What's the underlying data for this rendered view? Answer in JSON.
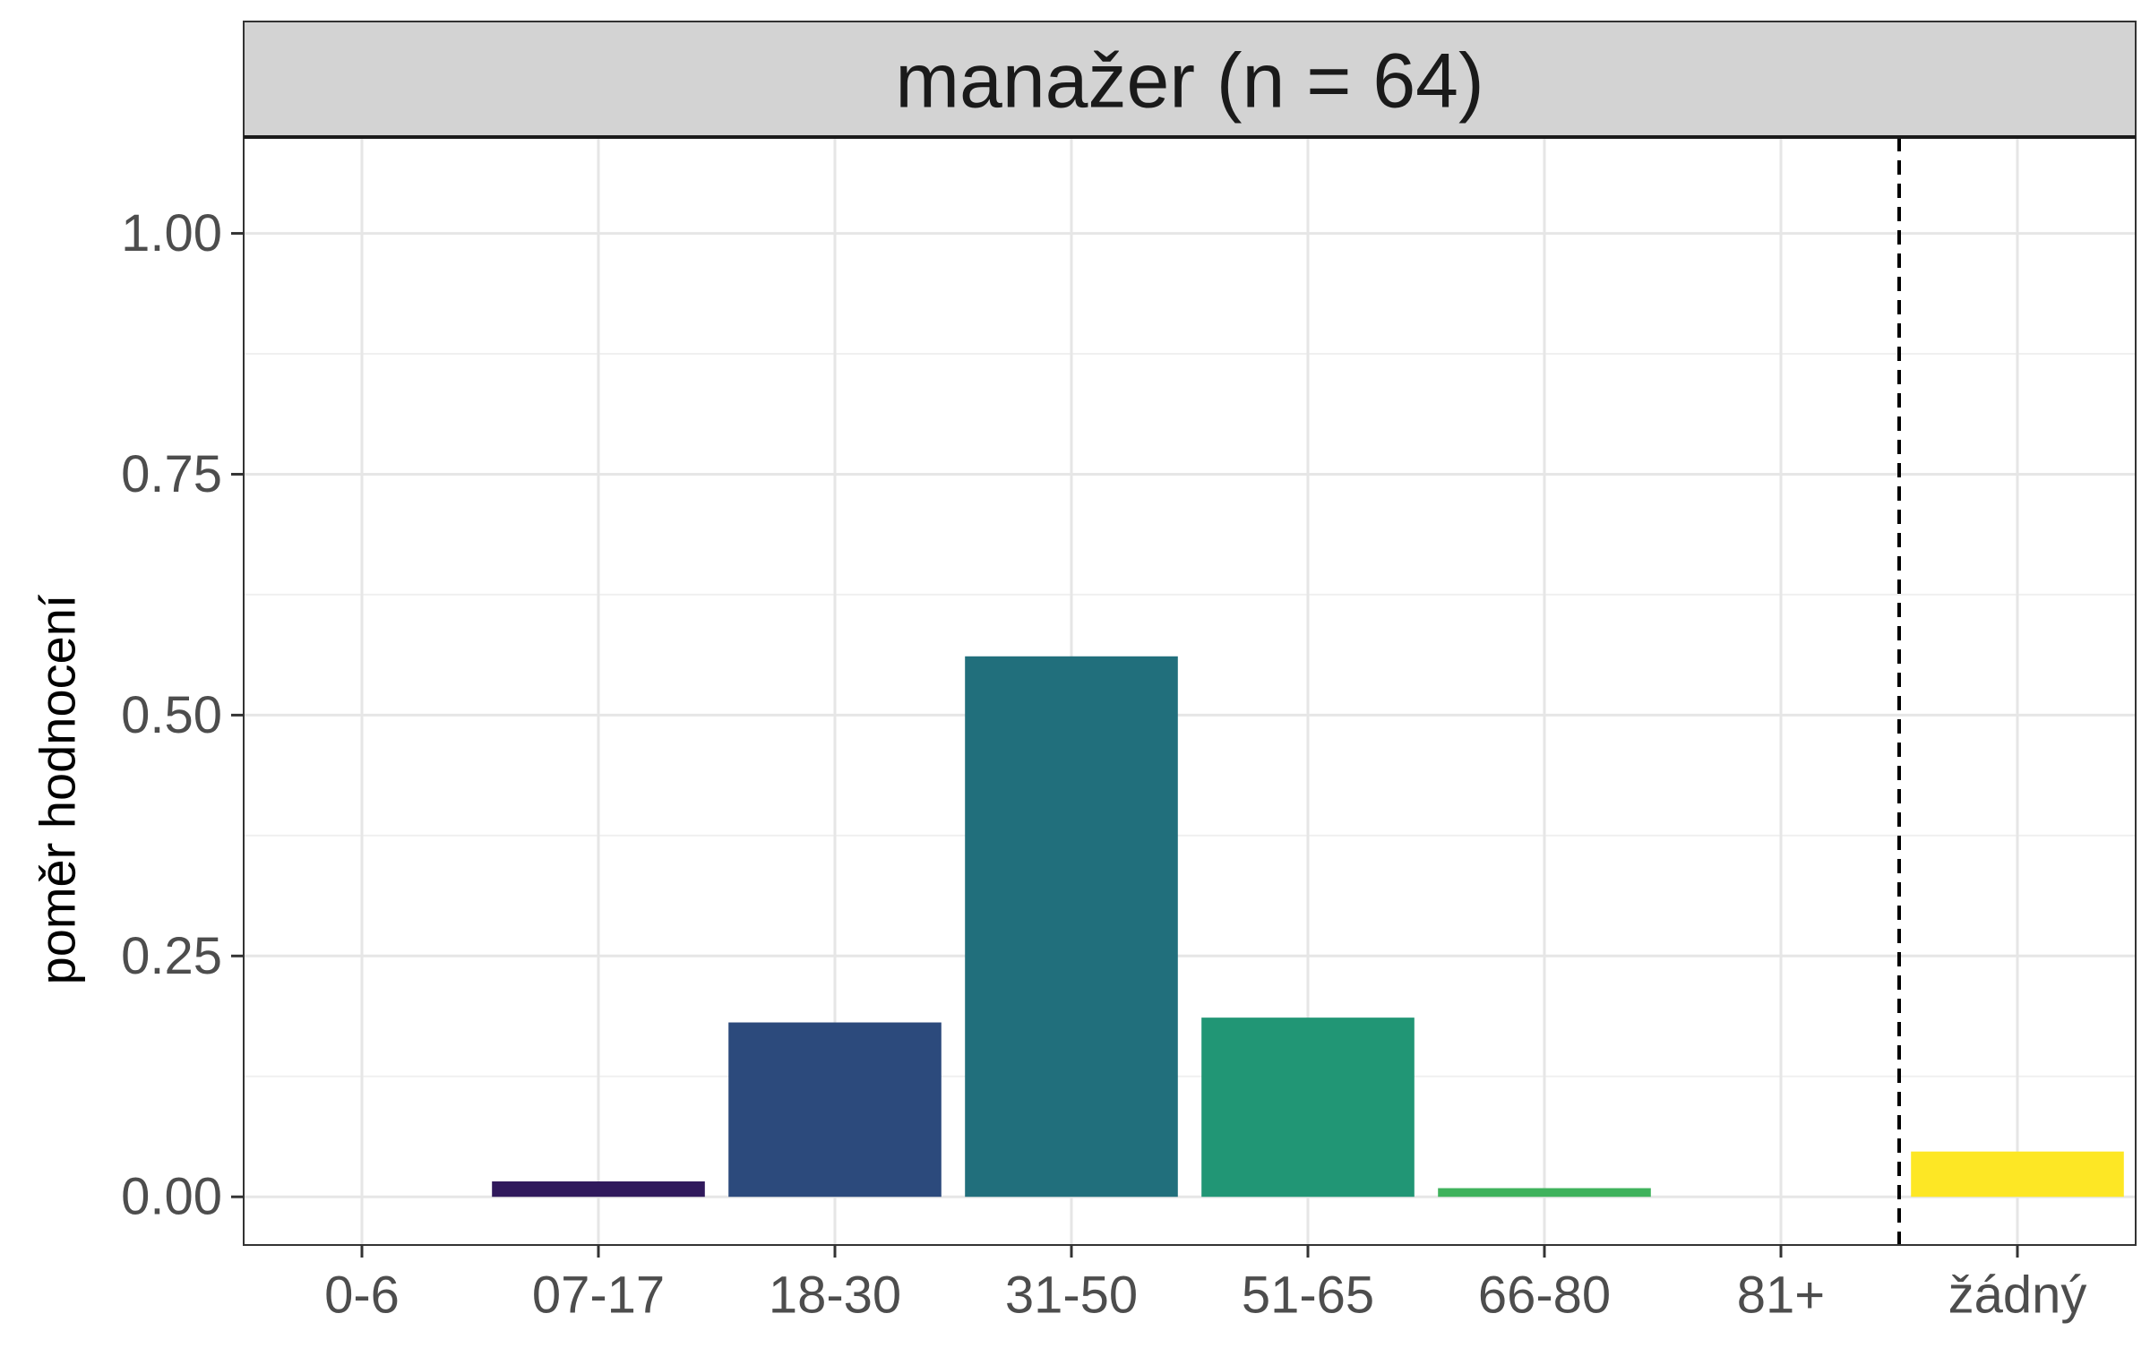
{
  "chart_data": {
    "type": "bar",
    "facet_label": "manažer (n = 64)",
    "ylabel": "poměr hodnocení",
    "xlabel": "",
    "ylim": [
      -0.05,
      1.1
    ],
    "y_ticks": [
      0.0,
      0.25,
      0.5,
      0.75,
      1.0
    ],
    "y_tick_labels": [
      "0.00",
      "0.25",
      "0.50",
      "0.75",
      "1.00"
    ],
    "categories": [
      "0-6",
      "07-17",
      "18-30",
      "31-50",
      "51-65",
      "66-80",
      "81+",
      "žádný"
    ],
    "values": [
      0.0,
      0.016,
      0.181,
      0.561,
      0.186,
      0.009,
      0.0,
      0.047
    ],
    "colors": [
      "#440154",
      "#30195c",
      "#2c4a7c",
      "#216f7c",
      "#219675",
      "#3fb25c",
      "#9bcf3c",
      "#fde725"
    ],
    "reference_line": {
      "after_category": "81+",
      "style": "dashed"
    },
    "grid": true,
    "legend": "none"
  }
}
